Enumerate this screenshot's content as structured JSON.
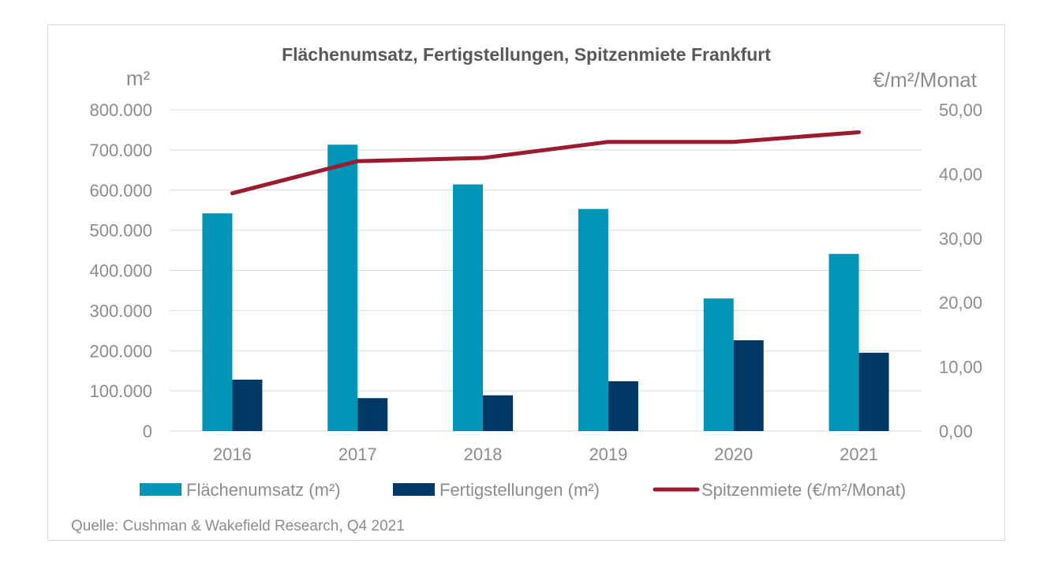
{
  "chart_data": {
    "type": "bar",
    "title": "Flächenumsatz, Fertigstellungen, Spitzenmiete Frankfurt",
    "ylabel": "m²",
    "y2label": "€/m²/Monat",
    "ylim": [
      0,
      800000
    ],
    "y2lim": [
      0,
      50
    ],
    "grid": true,
    "legend_position": "bottom",
    "categories": [
      "2016",
      "2017",
      "2018",
      "2019",
      "2020",
      "2021"
    ],
    "y_ticks": [
      "0",
      "100.000",
      "200.000",
      "300.000",
      "400.000",
      "500.000",
      "600.000",
      "700.000",
      "800.000"
    ],
    "y2_ticks": [
      "0,00",
      "10,00",
      "20,00",
      "30,00",
      "40,00",
      "50,00"
    ],
    "series": [
      {
        "name": "Flächenumsatz (m²)",
        "type": "bar",
        "axis": "left",
        "color": "#0095b6",
        "values": [
          542000,
          713000,
          614000,
          553000,
          330000,
          441000
        ]
      },
      {
        "name": "Fertigstellungen (m²)",
        "type": "bar",
        "axis": "left",
        "color": "#003865",
        "values": [
          128000,
          82000,
          89000,
          124000,
          226000,
          195000
        ]
      },
      {
        "name": "Spitzenmiete (€/m²/Monat)",
        "type": "line",
        "axis": "right",
        "color": "#9b1b30",
        "values": [
          37.0,
          42.0,
          42.5,
          45.0,
          45.0,
          46.5
        ]
      }
    ],
    "source": "Quelle: Cushman & Wakefield Research, Q4 2021"
  }
}
